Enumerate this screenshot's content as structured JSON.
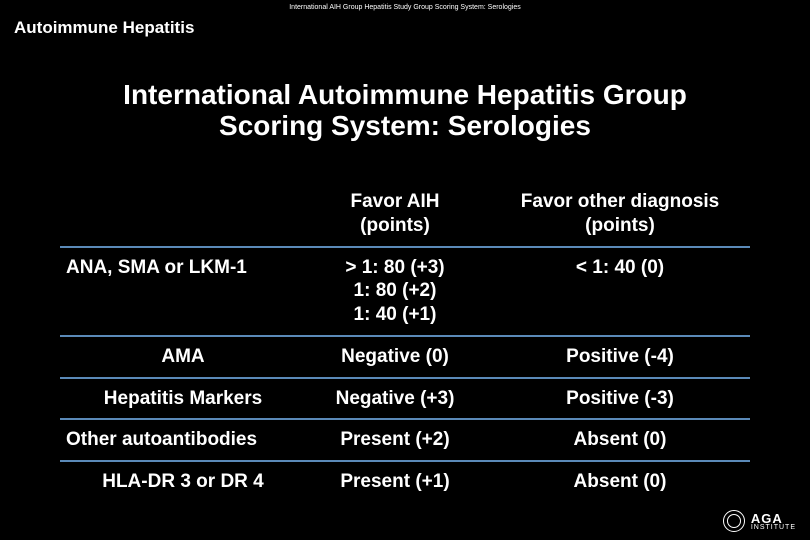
{
  "tiny_header": "International AIH Group Hepatitis Study Group Scoring System: Serologies",
  "topic": "Autoimmune Hepatitis",
  "title_line1": "International Autoimmune Hepatitis Group",
  "title_line2": "Scoring System: Serologies",
  "table": {
    "header": {
      "c1": "",
      "c2_line1": "Favor AIH",
      "c2_line2": "(points)",
      "c3_line1": "Favor other diagnosis",
      "c3_line2": "(points)"
    },
    "rows": [
      {
        "c1": "ANA, SMA or LKM-1",
        "c1_align": "left",
        "c2_line1": "> 1: 80 (+3)",
        "c2_line2": "1: 80 (+2)",
        "c2_line3": "1: 40 (+1)",
        "c3": "< 1: 40 (0)"
      },
      {
        "c1": "AMA",
        "c1_align": "center",
        "c2": "Negative (0)",
        "c3": "Positive (-4)"
      },
      {
        "c1": "Hepatitis Markers",
        "c1_align": "center",
        "c2": "Negative (+3)",
        "c3": "Positive (-3)"
      },
      {
        "c1": "Other autoantibodies",
        "c1_align": "left",
        "c2": "Present (+2)",
        "c3": "Absent (0)"
      },
      {
        "c1": "HLA-DR 3 or DR 4",
        "c1_align": "center",
        "c2": "Present (+1)",
        "c3": "Absent (0)"
      }
    ]
  },
  "footer": {
    "brand": "AGA",
    "sub": "INSTITUTE"
  },
  "colors": {
    "background": "#000000",
    "text": "#ffffff",
    "divider": "#5b8ab8"
  }
}
